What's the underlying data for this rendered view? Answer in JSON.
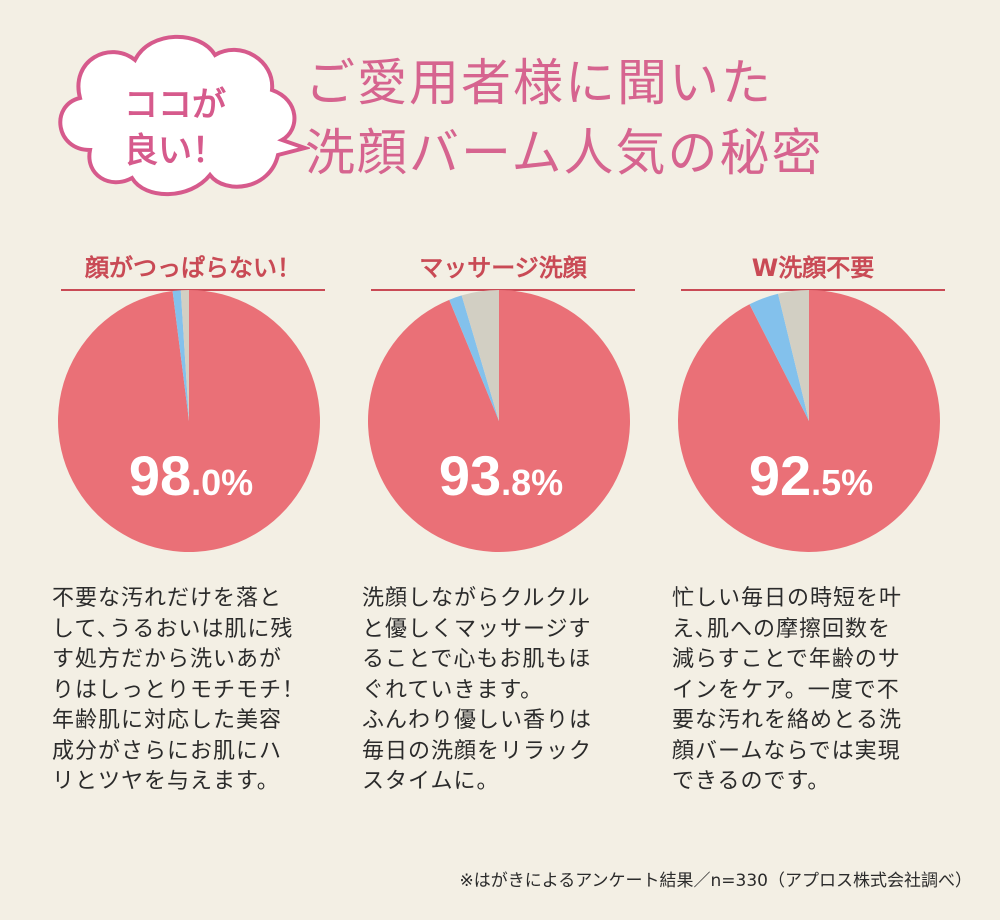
{
  "badge": {
    "line1": "ココが",
    "line2": "良い！"
  },
  "title": {
    "line1": "ご愛用者様に聞いた",
    "line2": "洗顔バーム人気の秘密"
  },
  "colors": {
    "main": "#ea7077",
    "blue": "#83c1ec",
    "gray": "#d2cfc3",
    "heading": "#c94a55",
    "title": "#d6648f"
  },
  "chart_data": [
    {
      "type": "pie",
      "title": "顔がつっぱらない！",
      "slices": [
        {
          "value": 98.0,
          "color": "#ea7077"
        },
        {
          "value": 1.0,
          "color": "#83c1ec"
        },
        {
          "value": 1.0,
          "color": "#d2cfc3"
        }
      ],
      "label_int": "98",
      "label_dec": ".0%"
    },
    {
      "type": "pie",
      "title": "マッサージ洗顔",
      "slices": [
        {
          "value": 93.8,
          "color": "#ea7077"
        },
        {
          "value": 1.6,
          "color": "#83c1ec"
        },
        {
          "value": 4.6,
          "color": "#d2cfc3"
        }
      ],
      "label_int": "93",
      "label_dec": ".8%"
    },
    {
      "type": "pie",
      "title": "W洗顔不要",
      "slices": [
        {
          "value": 92.5,
          "color": "#ea7077"
        },
        {
          "value": 3.7,
          "color": "#83c1ec"
        },
        {
          "value": 3.8,
          "color": "#d2cfc3"
        }
      ],
      "label_int": "92",
      "label_dec": ".5%"
    }
  ],
  "descriptions": [
    [
      "不要な汚れだけを落と",
      "して､うるおいは肌に残",
      "す処方だから洗いあが",
      "りはしっとりモチモチ！",
      "年齢肌に対応した美容",
      "成分がさらにお肌にハ",
      "リとツヤを与えます。"
    ],
    [
      "洗顔しながらクルクル",
      "と優しくマッサージす",
      "ることで心もお肌もほ",
      "ぐれていきます。",
      "ふんわり優しい香りは",
      "毎日の洗顔をリラック",
      "スタイムに。"
    ],
    [
      "忙しい毎日の時短を叶",
      "え､肌への摩擦回数を",
      "減らすことで年齢のサ",
      "インをケア。一度で不",
      "要な汚れを絡めとる洗",
      "顔バームならでは実現",
      "できるのです。"
    ]
  ],
  "footnote": "※はがきによるアンケート結果／n=330（アプロス株式会社調べ）"
}
